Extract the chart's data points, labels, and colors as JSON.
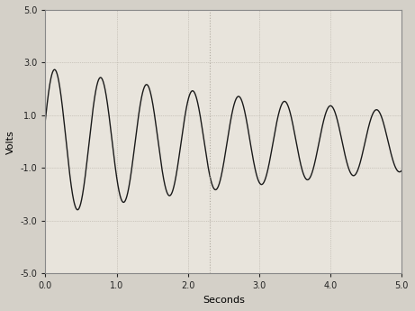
{
  "title": "",
  "xlabel": "Seconds",
  "ylabel": "Volts",
  "xlim": [
    0.0,
    5.0
  ],
  "ylim": [
    -5.0,
    5.0
  ],
  "xticks": [
    0.0,
    1.0,
    2.0,
    3.0,
    4.0,
    5.0
  ],
  "yticks": [
    -5.0,
    -3.0,
    -1.0,
    1.0,
    3.0,
    5.0
  ],
  "background_color": "#d4d0c8",
  "plot_bg_color": "#e8e4dc",
  "line_color": "#1a1a1a",
  "line_width": 1.0,
  "amplitude": 2.8,
  "decay": 0.18,
  "frequency": 1.55,
  "phase": 0.3,
  "grid_color": "#b0aaa0",
  "grid_linestyle": ":",
  "grid_linewidth": 0.5,
  "vline_x": 2.3,
  "vline_color": "#b0aaa0",
  "vline_linestyle": ":"
}
